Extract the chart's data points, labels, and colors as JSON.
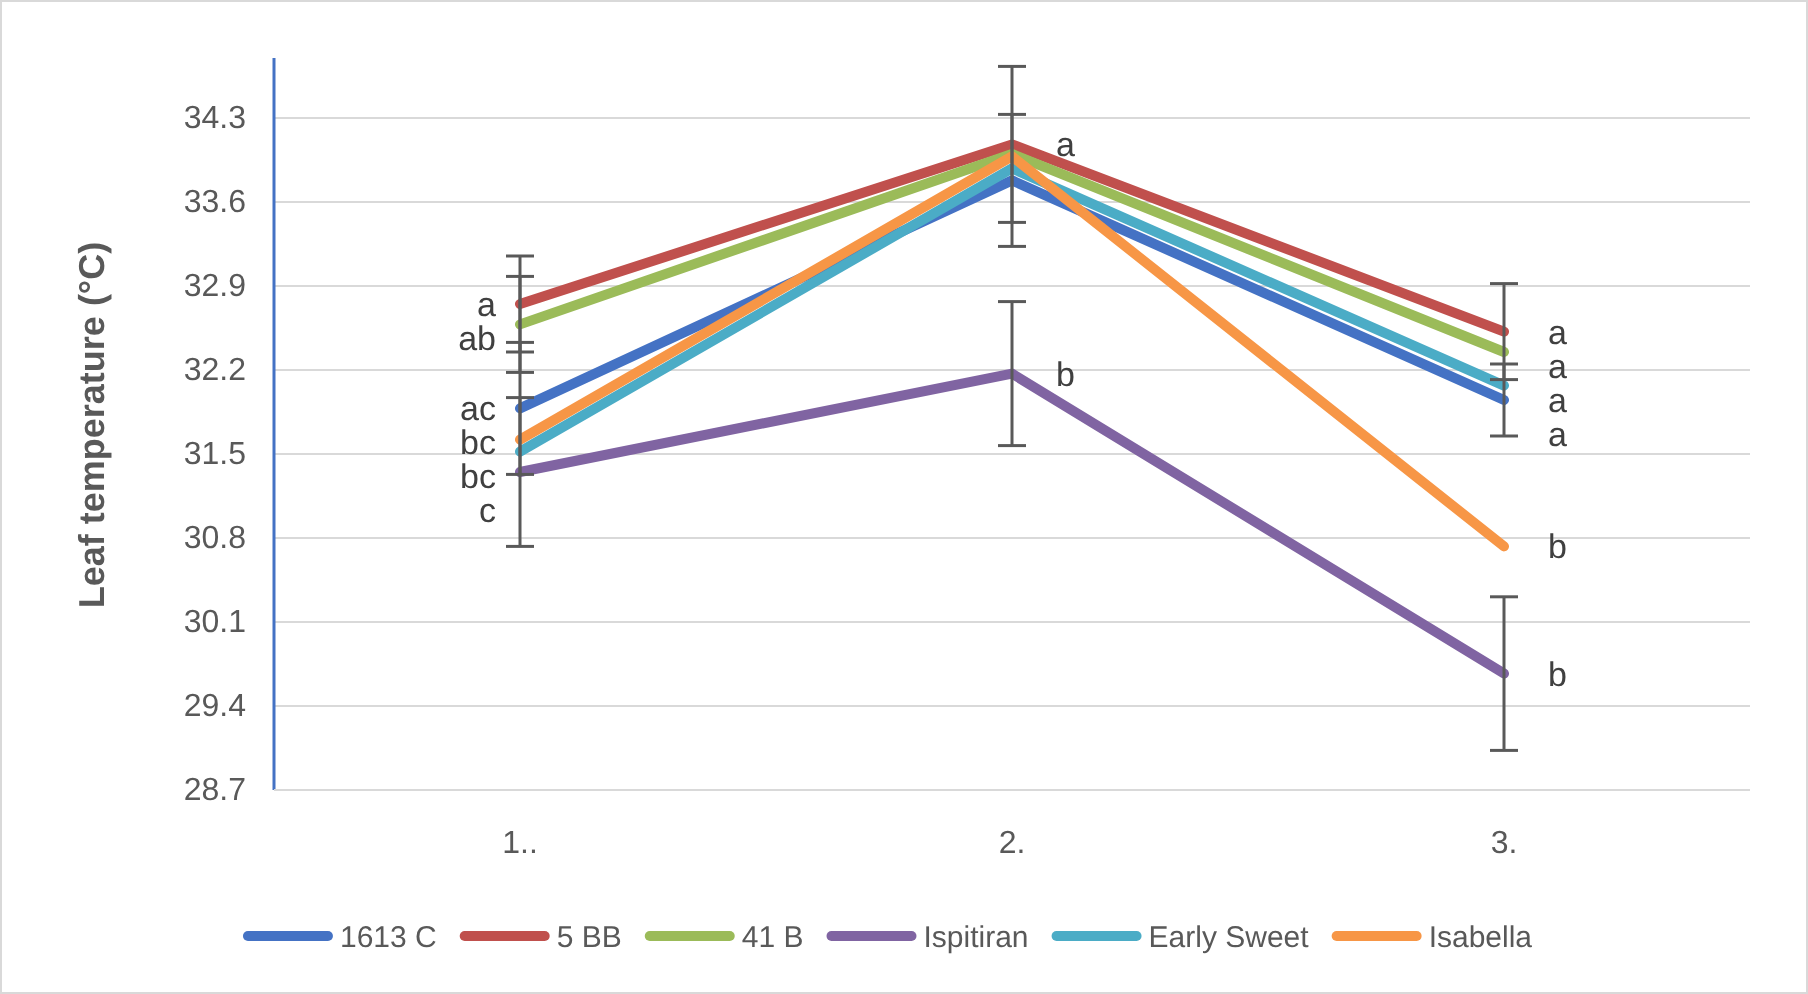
{
  "chart_data": {
    "type": "line",
    "ylabel": "Leaf temperature (°C)",
    "categories": [
      "1..",
      "2.",
      "3."
    ],
    "ylim": [
      28.7,
      34.8
    ],
    "yticks": [
      28.7,
      29.4,
      30.1,
      30.8,
      31.5,
      32.2,
      32.9,
      33.6,
      34.3
    ],
    "grid": "y",
    "legend": "bottom",
    "marker": "none",
    "line_style": "solid",
    "series": [
      {
        "name": "1613 C",
        "color": "#4472c4",
        "values": [
          31.88,
          33.78,
          31.95
        ],
        "errors": [
          0.55,
          0.55,
          0.3
        ]
      },
      {
        "name": "5 BB",
        "color": "#c0504d",
        "values": [
          32.75,
          34.08,
          32.52
        ],
        "errors": [
          0.4,
          0.65,
          0.4
        ]
      },
      {
        "name": "41 B",
        "color": "#9bbb59",
        "values": [
          32.58,
          34.0,
          32.35
        ],
        "errors": [
          0.4,
          null,
          null
        ]
      },
      {
        "name": "Ispitiran",
        "color": "#8064a2",
        "values": [
          31.35,
          32.17,
          29.67
        ],
        "errors": [
          0.62,
          0.6,
          0.64
        ]
      },
      {
        "name": "Early Sweet",
        "color": "#4bacc6",
        "values": [
          31.52,
          33.88,
          32.07
        ],
        "errors": [
          null,
          null,
          null
        ]
      },
      {
        "name": "Isabella",
        "color": "#f79646",
        "values": [
          31.62,
          33.98,
          30.73
        ],
        "errors": [
          null,
          null,
          null
        ]
      }
    ],
    "annotations": [
      {
        "text": "a",
        "x": "1..",
        "y": 32.75
      },
      {
        "text": "ab",
        "x": "1..",
        "y": 32.58
      },
      {
        "text": "ac",
        "x": "1..",
        "y": 31.88
      },
      {
        "text": "bc",
        "x": "1..",
        "y": 31.62
      },
      {
        "text": "bc",
        "x": "1..",
        "y": 31.52
      },
      {
        "text": "c",
        "x": "1..",
        "y": 31.35
      },
      {
        "text": "a",
        "x": "2.",
        "y": 34.08
      },
      {
        "text": "b",
        "x": "2.",
        "y": 32.17
      },
      {
        "text": "a",
        "x": "3.",
        "y": 32.52
      },
      {
        "text": "a",
        "x": "3.",
        "y": 32.35
      },
      {
        "text": "a",
        "x": "3.",
        "y": 32.07
      },
      {
        "text": "a",
        "x": "3.",
        "y": 31.95
      },
      {
        "text": "b",
        "x": "3.",
        "y": 30.73
      },
      {
        "text": "b",
        "x": "3.",
        "y": 29.67
      }
    ]
  }
}
